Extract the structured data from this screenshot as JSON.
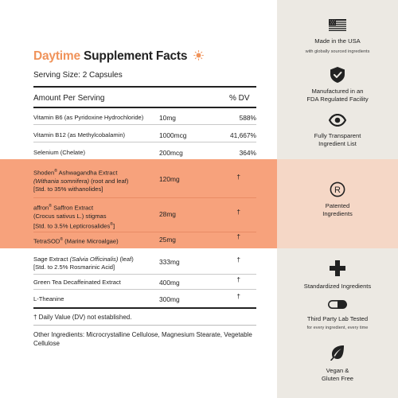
{
  "title": {
    "accent": "Daytime",
    "rest": "Supplement Facts"
  },
  "serving_size": "Serving Size: 2 Capsules",
  "header": {
    "amount_per_serving": "Amount Per Serving",
    "dv": "% DV"
  },
  "rows": [
    {
      "name": "Vitamin B6 (as Pyridoxine Hydrochloride)",
      "amount": "10mg",
      "dv": "588%"
    },
    {
      "name": "Vitamin B12 (as Methylcobalamin)",
      "amount": "1000mcg",
      "dv": "41,667%"
    },
    {
      "name": "Selenium (Chelate)",
      "amount": "200mcg",
      "dv": "364%"
    },
    {
      "name_main": "Shoden",
      "name_reg": "®",
      "name_rest": " Ashwagandha Extract",
      "name_line2_italic": "(Withania somnifera)",
      "name_line2": " (root and leaf)",
      "name_line3": "[Std. to 35% withanolides]",
      "amount": "120mg",
      "dv": "†"
    },
    {
      "name_main": "affron",
      "name_reg": "®",
      "name_rest": " Saffron Extract",
      "name_line2": "(Crocus sativus L.) stigmas",
      "name_line3": "[Std. to 3.5% Lepticrosalides",
      "name_line3_sup": "®",
      "name_line3_end": "]",
      "amount": "28mg",
      "dv": "†"
    },
    {
      "name_main": "TetraSOD",
      "name_reg": "®",
      "name_rest": " (Marine Microalgae)",
      "amount": "25mg",
      "dv": "†"
    },
    {
      "name_pre": "Sage Extract ",
      "name_italic": "(Salvia Officinalis)",
      "name_post": " (leaf)",
      "name_line2": "[Std. to 2.5% Rosmarinic Acid]",
      "amount": "333mg",
      "dv": "†"
    },
    {
      "name": "Green Tea Decaffeinated Extract",
      "amount": "400mg",
      "dv": "†"
    },
    {
      "name": "L-Theanine",
      "amount": "300mg",
      "dv": "†"
    }
  ],
  "footnote": "† Daily Value (DV) not established.",
  "other_ingredients": "Other Ingredients: Microcrystalline Cellulose, Magnesium Stearate, Vegetable Cellulose",
  "features": [
    {
      "icon": "us-flag-icon",
      "title": "Made in the USA",
      "subtitle": "with globally sourced ingredients"
    },
    {
      "icon": "shield-check-icon",
      "title_line1": "Manufactured in an",
      "title_line2": "FDA Regulated Facility"
    },
    {
      "icon": "eye-icon",
      "title_line1": "Fully Transparent",
      "title_line2": "Ingredient List"
    },
    {
      "icon": "registered-icon",
      "title_line1": "Patented",
      "title_line2": "Ingredients"
    },
    {
      "icon": "plus-cross-icon",
      "title": "Standardized Ingredients"
    },
    {
      "icon": "capsule-icon",
      "title": "Third Party Lab Tested",
      "subtitle": "for every ingredient, every time"
    },
    {
      "icon": "leaf-icon",
      "title_line1": "Vegan &",
      "title_line2": "Gluten Free"
    }
  ],
  "colors": {
    "accent": "#f0935a",
    "band": "#f7a27c",
    "side_panel": "#ece9e3",
    "side_band": "#f5d7c6",
    "text": "#222222"
  }
}
